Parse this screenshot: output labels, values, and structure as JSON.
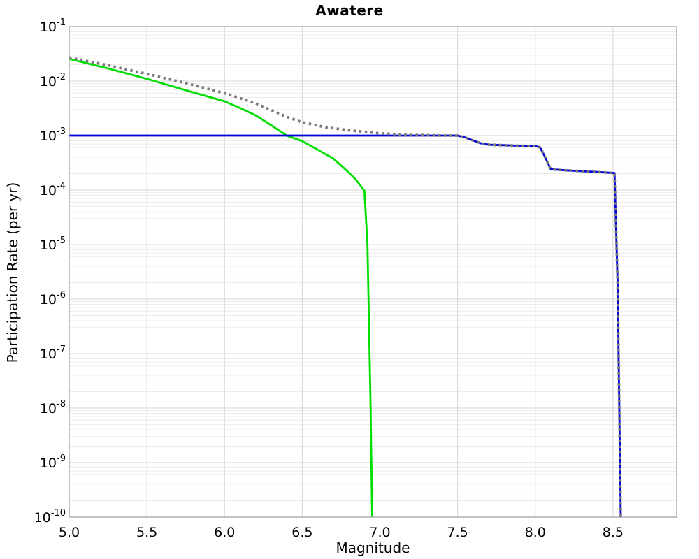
{
  "figure": {
    "title": "Awatere",
    "xlabel": "Magnitude",
    "ylabel": "Participation Rate (per yr)"
  },
  "chart_data": {
    "type": "line",
    "title": "Awatere",
    "xlabel": "Magnitude",
    "ylabel": "Participation Rate (per yr)",
    "x_scale": "linear",
    "y_scale": "log",
    "x_range": [
      5.0,
      8.91
    ],
    "y_range": [
      1e-10,
      0.1
    ],
    "grid": {
      "major_color": "#d6d6d6",
      "minor_color": "#ececec",
      "border_color": "#999999",
      "vertical_step": 0.5
    },
    "x_ticks": [
      {
        "v": 5.0,
        "label": "5.0"
      },
      {
        "v": 5.5,
        "label": "5.5"
      },
      {
        "v": 6.0,
        "label": "6.0"
      },
      {
        "v": 6.5,
        "label": "6.5"
      },
      {
        "v": 7.0,
        "label": "7.0"
      },
      {
        "v": 7.5,
        "label": "7.5"
      },
      {
        "v": 8.0,
        "label": "8.0"
      },
      {
        "v": 8.5,
        "label": "8.5"
      }
    ],
    "y_tick_exponents": [
      -1,
      -2,
      -3,
      -4,
      -5,
      -6,
      -7,
      -8,
      -9,
      -10
    ],
    "legend": null,
    "series": [
      {
        "id": "green-solid",
        "name": "green solid curve (tapers off, cliff at M~6.95)",
        "color": "#00dd00",
        "style": "solid",
        "width": 2.8,
        "points": [
          [
            5.0,
            0.0255
          ],
          [
            5.25,
            0.017
          ],
          [
            5.5,
            0.011
          ],
          [
            5.75,
            0.0068
          ],
          [
            6.0,
            0.00425
          ],
          [
            6.1,
            0.0032
          ],
          [
            6.2,
            0.00235
          ],
          [
            6.3,
            0.00155
          ],
          [
            6.4,
            0.001
          ],
          [
            6.5,
            0.00079
          ],
          [
            6.6,
            0.00055
          ],
          [
            6.7,
            0.00038
          ],
          [
            6.8,
            0.00021
          ],
          [
            6.85,
            0.00015
          ],
          [
            6.9,
            9.7e-05
          ],
          [
            6.92,
            1e-05
          ],
          [
            6.94,
            1e-08
          ],
          [
            6.95,
            1e-10
          ]
        ]
      },
      {
        "id": "blue-solid",
        "name": "blue solid curve (flat 1e-3, steps down, cliff at M~8.55)",
        "color": "#0000dd",
        "style": "solid",
        "width": 2.8,
        "points": [
          [
            5.0,
            0.001
          ],
          [
            7.5,
            0.001
          ],
          [
            7.55,
            0.00092
          ],
          [
            7.6,
            0.00081
          ],
          [
            7.65,
            0.00072
          ],
          [
            7.7,
            0.00068
          ],
          [
            7.8,
            0.000665
          ],
          [
            7.9,
            0.00065
          ],
          [
            8.0,
            0.00064
          ],
          [
            8.03,
            0.00061
          ],
          [
            8.06,
            0.00042
          ],
          [
            8.1,
            0.00024
          ],
          [
            8.2,
            0.00023
          ],
          [
            8.3,
            0.000222
          ],
          [
            8.4,
            0.000214
          ],
          [
            8.51,
            0.000205
          ],
          [
            8.53,
            2e-06
          ],
          [
            8.55,
            1e-10
          ]
        ]
      },
      {
        "id": "gray-dotted",
        "name": "gray dotted curve (decays from 2.7e-2, merges onto blue curve after M~7)",
        "color": "#7a7a7a",
        "style": "dotted",
        "width": 3.8,
        "dash": [
          3.5,
          4.6
        ],
        "points": [
          [
            5.0,
            0.027
          ],
          [
            5.25,
            0.0195
          ],
          [
            5.5,
            0.0135
          ],
          [
            5.75,
            0.0092
          ],
          [
            6.0,
            0.006
          ],
          [
            6.2,
            0.0039
          ],
          [
            6.4,
            0.0022
          ],
          [
            6.5,
            0.00175
          ],
          [
            6.65,
            0.00142
          ],
          [
            6.8,
            0.00125
          ],
          [
            7.0,
            0.0011
          ],
          [
            7.2,
            0.00103
          ],
          [
            7.4,
            0.001
          ],
          [
            7.5,
            0.001
          ],
          [
            7.55,
            0.00092
          ],
          [
            7.6,
            0.00081
          ],
          [
            7.65,
            0.00072
          ],
          [
            7.7,
            0.00068
          ],
          [
            7.8,
            0.000665
          ],
          [
            7.9,
            0.00065
          ],
          [
            8.0,
            0.00064
          ],
          [
            8.03,
            0.00061
          ],
          [
            8.06,
            0.00042
          ],
          [
            8.1,
            0.00024
          ],
          [
            8.2,
            0.00023
          ],
          [
            8.3,
            0.000222
          ],
          [
            8.4,
            0.000214
          ],
          [
            8.51,
            0.000205
          ],
          [
            8.53,
            2e-06
          ],
          [
            8.55,
            1e-10
          ]
        ]
      }
    ]
  }
}
